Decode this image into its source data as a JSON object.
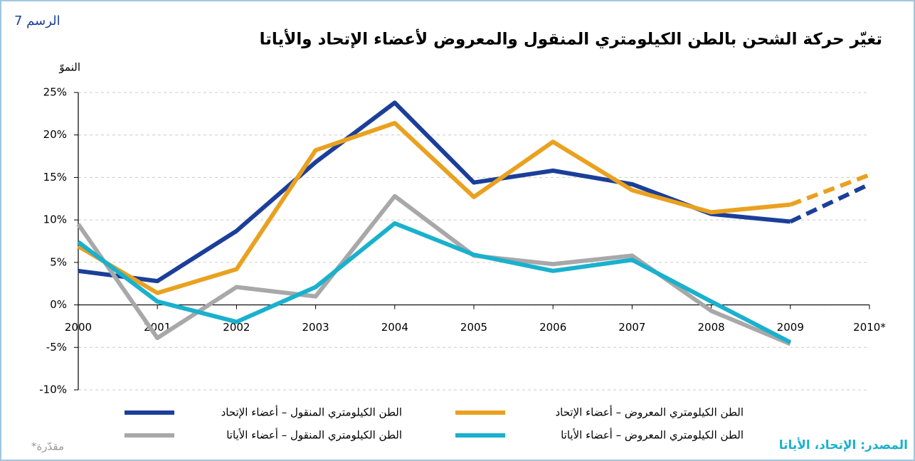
{
  "chart_data": {
    "type": "line",
    "figure_label": "الرسم 7",
    "title": "تغيّر حركة الشحن بالطن الكيلومتري المنقول والمعروض لأعضاء الإتحاد والأياتا",
    "y_axis_label": "النموّ",
    "categories": [
      "2000",
      "2001",
      "2002",
      "2003",
      "2004",
      "2005",
      "2006",
      "2007",
      "2008",
      "2009",
      "2010*"
    ],
    "ylim": [
      -10,
      25
    ],
    "yticks": [
      {
        "value": -10,
        "label": "-10%"
      },
      {
        "value": -5,
        "label": "-5%"
      },
      {
        "value": 0,
        "label": "0%"
      },
      {
        "value": 5,
        "label": "5%"
      },
      {
        "value": 10,
        "label": "10%"
      },
      {
        "value": 15,
        "label": "15%"
      },
      {
        "value": 20,
        "label": "20%"
      },
      {
        "value": 25,
        "label": "25%"
      }
    ],
    "grid": true,
    "dash_from": 9,
    "series": [
      {
        "name": "الطن الكيلومتري المنقول – أعضاء الإتحاد",
        "color": "#1b3f99",
        "values": [
          4.0,
          2.8,
          8.7,
          16.8,
          23.8,
          14.4,
          15.8,
          14.2,
          10.7,
          9.8,
          14.2
        ]
      },
      {
        "name": "الطن الكيلومتري المعروض – أعضاء الإتحاد",
        "color": "#e9a11f",
        "values": [
          6.9,
          1.4,
          4.2,
          18.2,
          21.4,
          12.7,
          19.2,
          13.5,
          10.9,
          11.8,
          15.3
        ]
      },
      {
        "name": "الطن الكيلومتري المنقول – أعضاء الأياتا",
        "color": "#a8a8a8",
        "values": [
          9.5,
          -3.9,
          2.1,
          1.0,
          12.8,
          5.8,
          4.8,
          5.8,
          -0.7,
          -4.6,
          null
        ]
      },
      {
        "name": "الطن الكيلومتري المعروض – أعضاء الأياتا",
        "color": "#19b1cd",
        "values": [
          7.4,
          0.4,
          -2.0,
          2.1,
          9.6,
          5.9,
          4.0,
          5.3,
          0.4,
          -4.4,
          null
        ]
      }
    ],
    "source": "المصدر: الإتحاد، الأياتا",
    "footnote": "*مقدّرة"
  }
}
